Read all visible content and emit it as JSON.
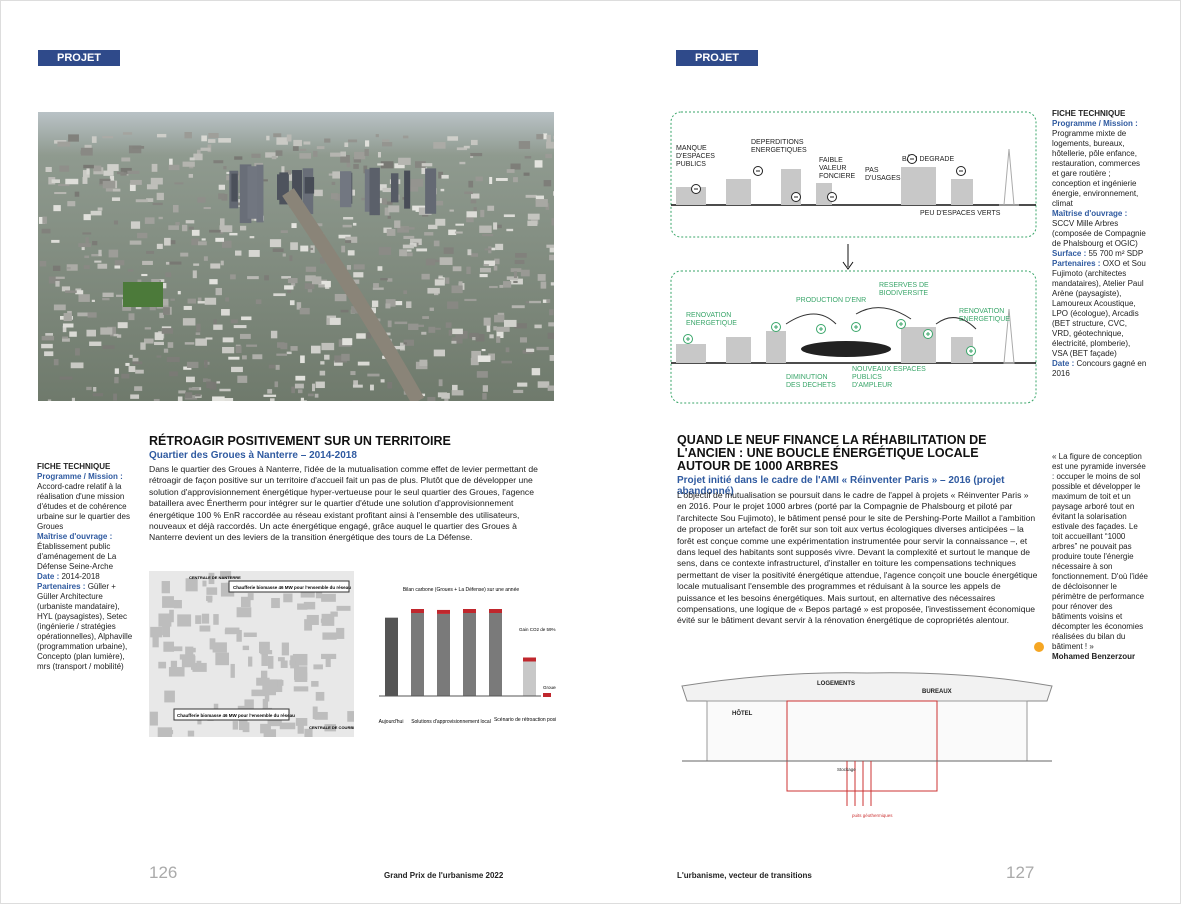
{
  "left": {
    "tag": "PROJET",
    "title": "RÉTROAGIR POSITIVEMENT SUR UN TERRITOIRE",
    "subtitle": "Quartier des Groues à Nanterre – 2014-2018",
    "body": "Dans le quartier des Groues à Nanterre, l'idée de la mutualisation comme effet de levier permettant de rétroagir de façon positive sur un territoire d'accueil fait un pas de plus. Plutôt que de développer une solution d'approvisionnement énergétique hyper-vertueuse pour le seul quartier des Groues, l'agence bataillera avec Énertherm pour intégrer sur le quartier d'étude une solution d'approvisionnement énergétique 100 % EnR raccordée au réseau existant profitant ainsi à l'ensemble des utilisateurs, nouveaux et déjà raccordés. Un acte énergétique engagé, grâce auquel le quartier des Groues à Nanterre devient un des leviers de la transition énergétique des tours de La Défense.",
    "fiche": {
      "heading": "FICHE TECHNIQUE",
      "items": [
        {
          "label": "Programme / Mission :",
          "text": "Accord-cadre relatif à la réalisation d'une mission d'études et de cohérence urbaine sur le quartier des Groues"
        },
        {
          "label": "Maîtrise d'ouvrage :",
          "text": "Établissement public d'aménagement de La Défense Seine-Arche"
        },
        {
          "label": "Date :",
          "text": "2014-2018"
        },
        {
          "label": "Partenaires :",
          "text": "Güller + Güller Architecture (urbaniste mandataire), HYL (paysagistes), Setec (ingénierie / stratégies opérationnelles), Alphaville (programmation urbaine), Concepto (plan lumière), mrs (transport / mobilité)"
        }
      ]
    },
    "map": {
      "labels": [
        "Chaufferie biomasse 46 MW pour l'ensemble du réseau",
        "Chaufferie biomasse 46 MW pour l'ensemble du réseau",
        "CENTRALE DE NANTERRE",
        "CENTRALE DE COURBEVOIE"
      ]
    },
    "chart": {
      "title": "Bilan carbone (Groues + La Défense) sur une année",
      "values": [
        84,
        89,
        88,
        89,
        89,
        37
      ],
      "gain": "Gain CO2 de 59%",
      "legend": "Groues",
      "groups": [
        "Aujourd'hui",
        "Solutions d'approvisionnement local",
        "Scénario de rétroaction positive"
      ]
    },
    "page_number": "126",
    "footer": "Grand Prix de l'urbanisme 2022"
  },
  "right": {
    "tag": "PROJET",
    "diagram": {
      "top": [
        "MANQUE D'ESPACES PUBLICS",
        "DEPERDITIONS ENERGETIQUES",
        "FAIBLE VALEUR FONCIERE",
        "PAS D'USAGES",
        "BÂTI DEGRADE",
        "PEU D'ESPACES VERTS"
      ],
      "bottom": [
        "RENOVATION ENERGETIQUE",
        "PRODUCTION D'ENR",
        "RESERVES DE BIODIVERSITE",
        "RENOVATION ENERGETIQUE",
        "DIMINUTION DES DECHETS",
        "NOUVEAUX ESPACES PUBLICS D'AMPLEUR"
      ]
    },
    "fiche": {
      "heading": "FICHE TECHNIQUE",
      "items": [
        {
          "label": "Programme / Mission :",
          "text": "Programme mixte de logements, bureaux, hôtellerie, pôle enfance, restauration, commerces et gare routière ; conception et ingénierie énergie, environnement, climat"
        },
        {
          "label": "Maîtrise d'ouvrage :",
          "text": "SCCV Mille Arbres (composée de Compagnie de Phalsbourg et OGIC)"
        },
        {
          "label": "Surface :",
          "text": "55 700 m² SDP"
        },
        {
          "label": "Partenaires :",
          "text": "OXO et Sou Fujimoto (architectes mandataires), Atelier Paul Arène (paysagiste), Lamoureux Acoustique, LPO (écologue), Arcadis (BET structure, CVC, VRD, géotechnique, électricité, plomberie), VSA (BET façade)"
        },
        {
          "label": "Date :",
          "text": "Concours gagné en 2016"
        }
      ]
    },
    "title": "QUAND LE NEUF FINANCE LA RÉHABILITATION DE L'ANCIEN : UNE BOUCLE ÉNERGÉTIQUE LOCALE AUTOUR DE 1000 ARBRES",
    "subtitle": "Projet initié dans le cadre de l'AMI « Réinventer Paris » – 2016 (projet abandonné)",
    "body": "L'objectif de mutualisation se poursuit dans le cadre de l'appel à projets « Réinventer Paris » en 2016. Pour le projet 1000 arbres (porté par la Compagnie de Phalsbourg et piloté par l'architecte Sou Fujimoto), le bâtiment pensé pour le site de Pershing-Porte Maillot a l'ambition de proposer un artefact de forêt sur son toit aux vertus écologiques diverses anticipées – la forêt est conçue comme une expérimentation instrumentée pour servir la connaissance –, et dans lequel des habitants sont supposés vivre. Devant la complexité et surtout le manque de sens, dans ce contexte infrastructurel, d'installer en toiture les compensations techniques permettant de viser la positivité énergétique attendue, l'agence conçoit une boucle énergétique locale mutualisant l'ensemble des programmes et réduisant à la source les appels de puissance et les besoins énergétiques. Mais surtout, en alternative des nécessaires compensations, une logique de « Bepos partagé » est proposée, l'investissement économique évité sur le bâtiment devant servir à la rénovation énergétique de copropriétés alentour.",
    "quote": "« La figure de conception est une pyramide inversée : occuper le moins de sol possible et développer le maximum de toit et un paysage arboré tout en évitant la solarisation estivale des façades. Le toit accueillant “1000 arbres” ne pouvait pas produire toute l'énergie nécessaire à son fonctionnement. D'où l'idée de décloisonner le périmètre de performance pour rénover des bâtiments voisins et décompter les économies réalisées du bilan du bâtiment ! »",
    "author": "Mohamed Benzerzour",
    "section": {
      "labels": [
        "HÔTEL",
        "LOGEMENTS",
        "BUREAUX",
        "Stockage",
        "puits géothermiques"
      ]
    },
    "page_number": "127",
    "footer": "L'urbanisme, vecteur de transitions"
  }
}
